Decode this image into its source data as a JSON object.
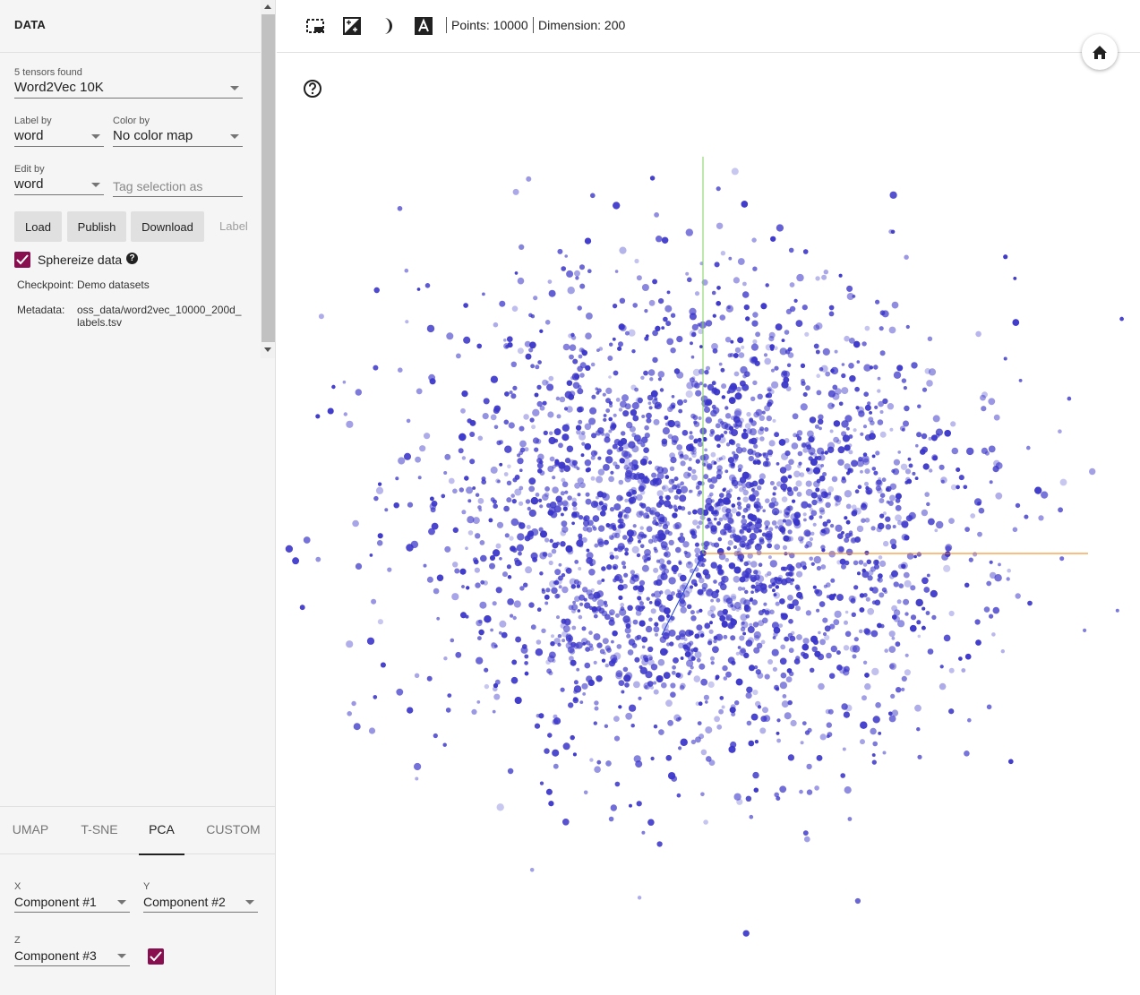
{
  "data_panel": {
    "title": "DATA",
    "tensors_label": "5 tensors found",
    "tensor_selected": "Word2Vec 10K",
    "label_by": {
      "label": "Label by",
      "value": "word"
    },
    "color_by": {
      "label": "Color by",
      "value": "No color map"
    },
    "edit_by": {
      "label": "Edit by",
      "value": "word"
    },
    "tag_placeholder": "Tag selection as",
    "buttons": {
      "load": "Load",
      "publish": "Publish",
      "download": "Download",
      "label": "Label"
    },
    "sphereize_label": "Sphereize data",
    "sphereize_checked": true,
    "checkpoint_label": "Checkpoint:",
    "checkpoint_value": "Demo datasets",
    "metadata_label": "Metadata:",
    "metadata_value_line1": "oss_data/word2vec_10000_200d_",
    "metadata_value_line2": "labels.tsv"
  },
  "tabs": [
    {
      "label": "UMAP"
    },
    {
      "label": "T-SNE"
    },
    {
      "label": "PCA",
      "active": true
    },
    {
      "label": "CUSTOM"
    }
  ],
  "pca": {
    "x": {
      "label": "X",
      "value": "Component #1"
    },
    "y": {
      "label": "Y",
      "value": "Component #2"
    },
    "z": {
      "label": "Z",
      "value": "Component #3"
    },
    "z_enabled": true
  },
  "toolbar": {
    "icons": [
      "select-rectangle-icon",
      "night-mode-icon",
      "contrast-icon",
      "labels-icon"
    ],
    "points_text": "Points: 10000",
    "dimension_text": "Dimension: 200"
  },
  "icons": {
    "home": "home-icon",
    "help": "help-circle-icon"
  },
  "colors": {
    "accent": "#880e4f",
    "point": "#3b36c9",
    "axis_x": "#f57c00",
    "axis_y": "#7cd05a",
    "axis_z": "#1e3fd6"
  }
}
